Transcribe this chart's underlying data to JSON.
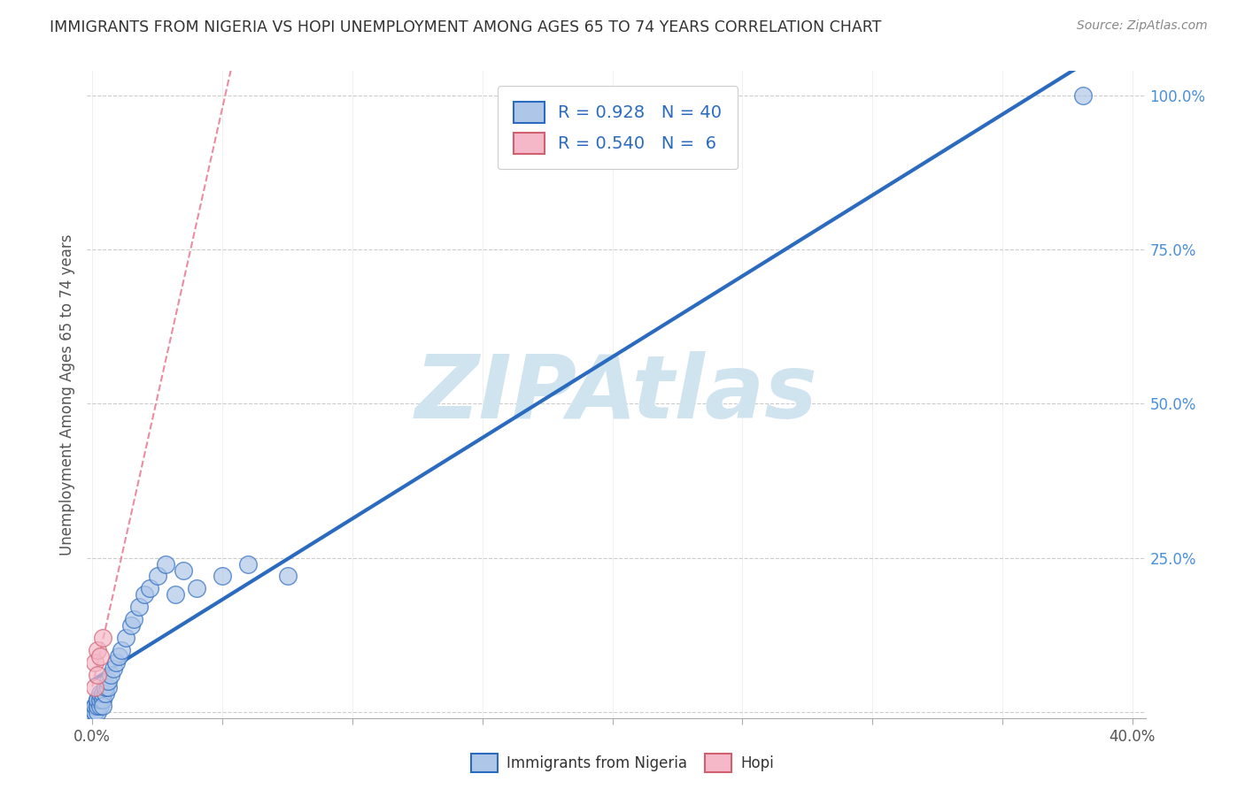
{
  "title": "IMMIGRANTS FROM NIGERIA VS HOPI UNEMPLOYMENT AMONG AGES 65 TO 74 YEARS CORRELATION CHART",
  "source": "Source: ZipAtlas.com",
  "ylabel": "Unemployment Among Ages 65 to 74 years",
  "xlim": [
    -0.002,
    0.405
  ],
  "ylim": [
    -0.01,
    1.04
  ],
  "nigeria_R": 0.928,
  "nigeria_N": 40,
  "hopi_R": 0.54,
  "hopi_N": 6,
  "nigeria_color": "#aec6e8",
  "hopi_color": "#f4b8c8",
  "nigeria_line_color": "#2b6bbf",
  "hopi_line_color": "#e87890",
  "watermark_color": "#d0e4f0",
  "background_color": "#ffffff",
  "grid_color": "#cccccc",
  "nigeria_x": [
    0.001,
    0.001,
    0.001,
    0.001,
    0.001,
    0.002,
    0.002,
    0.002,
    0.002,
    0.002,
    0.003,
    0.003,
    0.003,
    0.004,
    0.004,
    0.004,
    0.005,
    0.005,
    0.006,
    0.006,
    0.007,
    0.008,
    0.009,
    0.01,
    0.011,
    0.013,
    0.015,
    0.016,
    0.018,
    0.02,
    0.022,
    0.025,
    0.028,
    0.032,
    0.035,
    0.04,
    0.05,
    0.06,
    0.075,
    0.381
  ],
  "nigeria_y": [
    0.0,
    0.0,
    0.01,
    0.0,
    0.01,
    0.01,
    0.02,
    0.0,
    0.01,
    0.02,
    0.01,
    0.02,
    0.03,
    0.02,
    0.03,
    0.01,
    0.03,
    0.04,
    0.04,
    0.05,
    0.06,
    0.07,
    0.08,
    0.09,
    0.1,
    0.12,
    0.14,
    0.15,
    0.17,
    0.19,
    0.2,
    0.22,
    0.24,
    0.19,
    0.23,
    0.2,
    0.22,
    0.24,
    0.22,
    1.0
  ],
  "hopi_x": [
    0.001,
    0.001,
    0.002,
    0.002,
    0.003,
    0.004
  ],
  "hopi_y": [
    0.04,
    0.08,
    0.06,
    0.1,
    0.09,
    0.12
  ]
}
